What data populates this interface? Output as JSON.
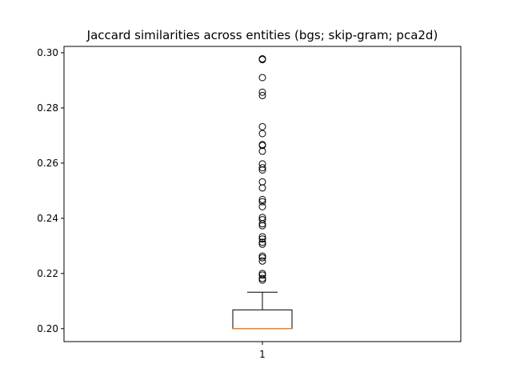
{
  "chart_data": {
    "type": "boxplot",
    "title": "Jaccard similarities across entities (bgs; skip-gram; pca2d)",
    "xlabel": "",
    "ylabel": "",
    "ylim": [
      0.1953,
      0.3023
    ],
    "yticks": [
      0.2,
      0.22,
      0.24,
      0.26,
      0.28,
      0.3
    ],
    "ytick_labels": [
      "0.20",
      "0.22",
      "0.24",
      "0.26",
      "0.28",
      "0.30"
    ],
    "categories": [
      "1"
    ],
    "box": {
      "whisker_low": 0.2,
      "q1": 0.2,
      "median": 0.2,
      "q3": 0.2068,
      "whisker_high": 0.2132
    },
    "outliers": [
      0.2176,
      0.2182,
      0.2194,
      0.22,
      0.2245,
      0.2257,
      0.2263,
      0.2306,
      0.2313,
      0.2325,
      0.2333,
      0.2373,
      0.238,
      0.2395,
      0.2403,
      0.2442,
      0.246,
      0.2468,
      0.251,
      0.2532,
      0.2575,
      0.2583,
      0.2597,
      0.2643,
      0.2664,
      0.2667,
      0.2707,
      0.2732,
      0.2845,
      0.2857,
      0.291,
      0.2975,
      0.2978
    ],
    "colors": {
      "box": "#000000",
      "median": "#ff7f0e",
      "outlier": "#000000"
    },
    "grid": false
  }
}
